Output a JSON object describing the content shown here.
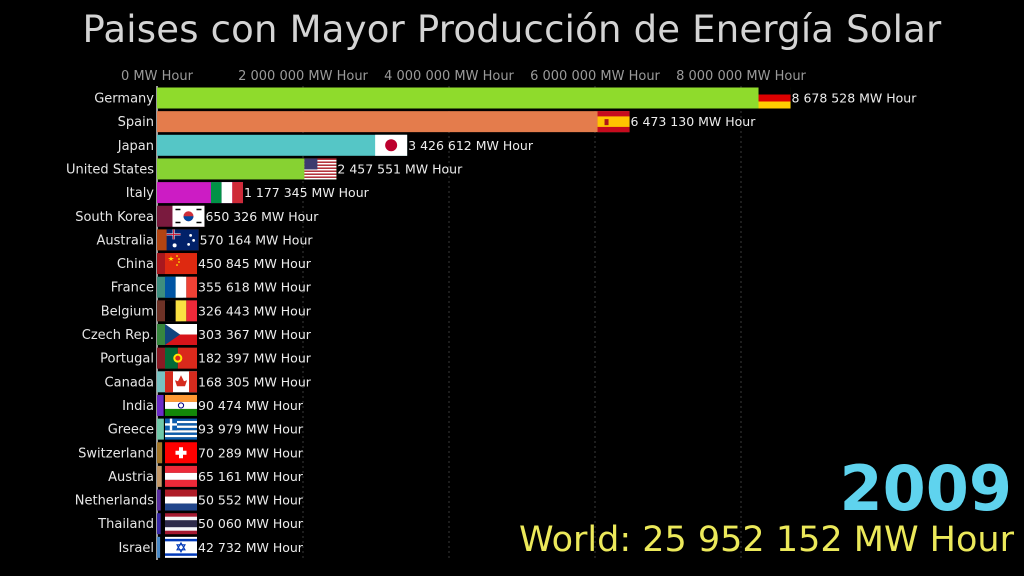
{
  "title": "Paises con Mayor Producción de Energía Solar",
  "year": "2009",
  "world": {
    "prefix": "World: ",
    "value": "25 952 152 MW Hour"
  },
  "chart_data": {
    "type": "bar",
    "orientation": "horizontal",
    "xlim": [
      0,
      8800000
    ],
    "ticks": [
      0,
      2000000,
      4000000,
      6000000,
      8000000
    ],
    "tick_labels": [
      "0 MW Hour",
      "2 000 000 MW Hour",
      "4 000 000 MW Hour",
      "6 000 000 MW Hour",
      "8 000 000 MW Hour"
    ],
    "grid": true,
    "bars": [
      {
        "name": "Germany",
        "value": 8678528,
        "label": "8 678 528 MW Hour",
        "color": "#8fdb2c",
        "flag": "germany-flag"
      },
      {
        "name": "Spain",
        "value": 6473130,
        "label": "6 473 130 MW Hour",
        "color": "#e47c4c",
        "flag": "spain-flag"
      },
      {
        "name": "Japan",
        "value": 3426612,
        "label": "3 426 612 MW Hour",
        "color": "#55c6c6",
        "flag": "japan-flag"
      },
      {
        "name": "United States",
        "value": 2457551,
        "label": "2 457 551 MW Hour",
        "color": "#87d232",
        "flag": "usa-flag"
      },
      {
        "name": "Italy",
        "value": 1177345,
        "label": "1 177 345 MW Hour",
        "color": "#cc1cc4",
        "flag": "italy-flag"
      },
      {
        "name": "South Korea",
        "value": 650326,
        "label": "650 326 MW Hour",
        "color": "#7a1a3e",
        "flag": "south-korea-flag"
      },
      {
        "name": "Australia",
        "value": 570164,
        "label": "570 164 MW Hour",
        "color": "#b24412",
        "flag": "australia-flag"
      },
      {
        "name": "China",
        "value": 450845,
        "label": "450 845 MW Hour",
        "color": "#a8181e",
        "flag": "china-flag"
      },
      {
        "name": "France",
        "value": 355618,
        "label": "355 618 MW Hour",
        "color": "#3e8e7e",
        "flag": "france-flag"
      },
      {
        "name": "Belgium",
        "value": 326443,
        "label": "326 443 MW Hour",
        "color": "#6e3226",
        "flag": "belgium-flag"
      },
      {
        "name": "Czech Rep.",
        "value": 303367,
        "label": "303 367 MW Hour",
        "color": "#37873e",
        "flag": "czech-flag"
      },
      {
        "name": "Portugal",
        "value": 182397,
        "label": "182 397 MW Hour",
        "color": "#8a1a24",
        "flag": "portugal-flag"
      },
      {
        "name": "Canada",
        "value": 168305,
        "label": "168 305 MW Hour",
        "color": "#77c2c2",
        "flag": "canada-flag"
      },
      {
        "name": "India",
        "value": 90474,
        "label": "90 474 MW Hour",
        "color": "#6c2cc8",
        "flag": "india-flag"
      },
      {
        "name": "Greece",
        "value": 93979,
        "label": "93 979 MW Hour",
        "color": "#6fc8a8",
        "flag": "greece-flag"
      },
      {
        "name": "Switzerland",
        "value": 70289,
        "label": "70 289 MW Hour",
        "color": "#a47628",
        "flag": "switzerland-flag"
      },
      {
        "name": "Austria",
        "value": 65161,
        "label": "65 161 MW Hour",
        "color": "#c49868",
        "flag": "austria-flag"
      },
      {
        "name": "Netherlands",
        "value": 50552,
        "label": "50 552 MW Hour",
        "color": "#5a2ea0",
        "flag": "netherlands-flag"
      },
      {
        "name": "Thailand",
        "value": 50060,
        "label": "50 060 MW Hour",
        "color": "#3a2aa8",
        "flag": "thailand-flag"
      },
      {
        "name": "Israel",
        "value": 42732,
        "label": "42 732 MW Hour",
        "color": "#4a8ac8",
        "flag": "israel-flag"
      }
    ]
  }
}
